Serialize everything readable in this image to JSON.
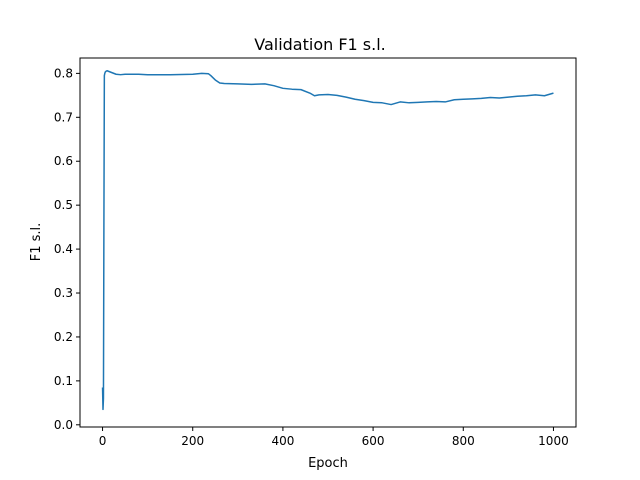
{
  "chart_data": {
    "type": "line",
    "title": "Validation F1 s.l.",
    "xlabel": "Epoch",
    "ylabel": "F1 s.l.",
    "xlim": [
      -50,
      1050
    ],
    "ylim": [
      -0.005,
      0.835
    ],
    "xticks": [
      0,
      200,
      400,
      600,
      800,
      1000
    ],
    "yticks": [
      0.0,
      0.1,
      0.2,
      0.3,
      0.4,
      0.5,
      0.6,
      0.7,
      0.8
    ],
    "ytick_labels": [
      "0.0",
      "0.1",
      "0.2",
      "0.3",
      "0.4",
      "0.5",
      "0.6",
      "0.7",
      "0.8"
    ],
    "grid": false,
    "series": [
      {
        "color": "#1f77b4",
        "x": [
          0,
          1,
          2,
          3,
          4,
          5,
          6,
          8,
          10,
          15,
          20,
          30,
          40,
          50,
          80,
          100,
          150,
          200,
          220,
          235,
          240,
          250,
          260,
          270,
          300,
          330,
          360,
          380,
          400,
          420,
          440,
          460,
          470,
          480,
          500,
          520,
          540,
          560,
          580,
          600,
          620,
          640,
          660,
          680,
          700,
          720,
          740,
          760,
          780,
          800,
          820,
          840,
          860,
          880,
          900,
          920,
          940,
          960,
          980,
          1000
        ],
        "y": [
          0.085,
          0.035,
          0.06,
          0.45,
          0.795,
          0.8,
          0.803,
          0.805,
          0.806,
          0.804,
          0.802,
          0.798,
          0.797,
          0.798,
          0.798,
          0.797,
          0.797,
          0.798,
          0.8,
          0.799,
          0.795,
          0.785,
          0.778,
          0.777,
          0.776,
          0.775,
          0.776,
          0.772,
          0.766,
          0.764,
          0.763,
          0.755,
          0.749,
          0.751,
          0.752,
          0.75,
          0.746,
          0.741,
          0.738,
          0.734,
          0.733,
          0.729,
          0.735,
          0.733,
          0.734,
          0.735,
          0.736,
          0.735,
          0.74,
          0.741,
          0.742,
          0.743,
          0.745,
          0.744,
          0.746,
          0.748,
          0.749,
          0.751,
          0.749,
          0.755
        ]
      }
    ]
  }
}
